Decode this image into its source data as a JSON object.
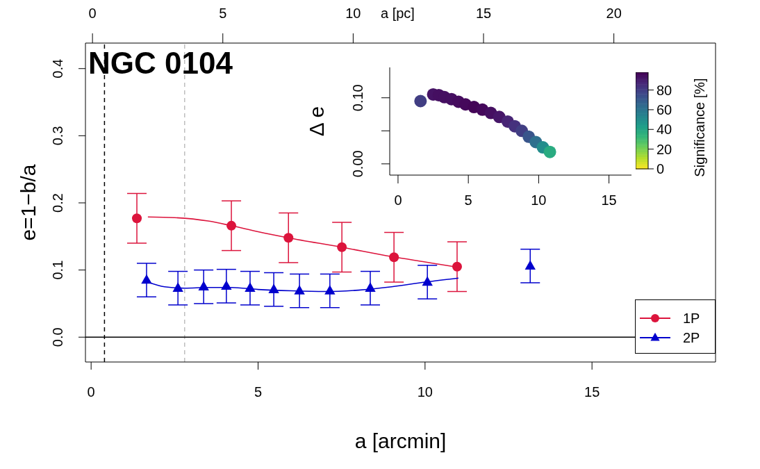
{
  "chart_data": [
    {
      "type": "scatter",
      "title": "NGC 0104",
      "xlabel": "a [arcmin]",
      "ylabel": "e=1−b/a",
      "x2label": "a [pc]",
      "xlim": [
        -0.17,
        18.7
      ],
      "xticks": [
        0,
        5,
        10,
        15
      ],
      "x2lim": [
        -0.27,
        23.9
      ],
      "x2ticks": [
        0,
        5,
        10,
        15,
        20
      ],
      "ylim": [
        -0.037,
        0.438
      ],
      "yticks": [
        {
          "value": 0,
          "label": "0.0"
        },
        {
          "value": 0.1,
          "label": "0.1"
        },
        {
          "value": 0.2,
          "label": "0.2"
        },
        {
          "value": 0.3,
          "label": "0.3"
        },
        {
          "value": 0.4,
          "label": "0.4"
        }
      ],
      "legend": "bottom right",
      "series": [
        {
          "name": "1P",
          "type": "scatter",
          "color": "#dc143c",
          "marker": "circle",
          "x": [
            1.37,
            4.2,
            5.91,
            7.51,
            9.07,
            10.96
          ],
          "values": [
            0.177,
            0.166,
            0.148,
            0.134,
            0.119,
            0.105
          ],
          "errors": [
            0.037,
            0.037,
            0.037,
            0.037,
            0.037,
            0.037
          ]
        },
        {
          "name": "2P",
          "type": "scatter",
          "color": "#0000cd",
          "marker": "triangle",
          "x": [
            1.66,
            2.6,
            3.37,
            4.05,
            4.76,
            5.47,
            6.24,
            7.15,
            8.36,
            10.07,
            13.15
          ],
          "values": [
            0.085,
            0.073,
            0.075,
            0.076,
            0.073,
            0.071,
            0.069,
            0.069,
            0.073,
            0.082,
            0.106
          ],
          "errors": [
            0.025,
            0.025,
            0.025,
            0.025,
            0.025,
            0.025,
            0.025,
            0.025,
            0.025,
            0.025,
            0.025
          ]
        },
        {
          "type": "line",
          "color": "#dc143c",
          "marker": "none",
          "x": [
            1.7,
            2.5,
            3.5,
            4.2,
            5,
            5.9,
            7.5,
            9,
            10,
            11
          ],
          "values": [
            0.179,
            0.178,
            0.173,
            0.166,
            0.157,
            0.148,
            0.134,
            0.12,
            0.112,
            0.104
          ]
        },
        {
          "type": "line",
          "color": "#0000cd",
          "marker": "none",
          "x": [
            1.7,
            2.2,
            2.8,
            3.5,
            4.2,
            5,
            6,
            7,
            8,
            9,
            10,
            11
          ],
          "values": [
            0.082,
            0.075,
            0.073,
            0.074,
            0.074,
            0.071,
            0.069,
            0.068,
            0.07,
            0.075,
            0.082,
            0.088
          ]
        }
      ],
      "ref_lines": [
        {
          "axis": "x",
          "value": 0.4,
          "color": "#000000",
          "line_style": "dashed"
        },
        {
          "axis": "x",
          "value": 2.8,
          "color": "#bebebe",
          "line_style": "dashed"
        },
        {
          "axis": "y",
          "value": 0,
          "color": "#000000",
          "line_style": "solid"
        }
      ]
    },
    {
      "type": "scatter",
      "ylabel": "Δ e",
      "clabel": "Significance [%]",
      "xlim": [
        -0.59,
        16.6
      ],
      "xticks": [
        0,
        5,
        10,
        15
      ],
      "ylim": [
        -0.017,
        0.146
      ],
      "yticks": [
        {
          "value": 0,
          "label": "0.00"
        },
        {
          "value": 0.05,
          "label": null
        },
        {
          "value": 0.1,
          "label": "0.10"
        }
      ],
      "clim": [
        0,
        98
      ],
      "cticks": [
        0,
        20,
        40,
        60,
        80
      ],
      "x": [
        1.6,
        2.5,
        2.9,
        3.3,
        3.8,
        4.3,
        4.8,
        5.4,
        6.0,
        6.6,
        7.2,
        7.8,
        8.3,
        8.8,
        9.3,
        9.8,
        10.3,
        10.8
      ],
      "values": [
        0.095,
        0.105,
        0.104,
        0.101,
        0.098,
        0.094,
        0.09,
        0.086,
        0.082,
        0.077,
        0.071,
        0.064,
        0.057,
        0.05,
        0.041,
        0.033,
        0.025,
        0.018
      ],
      "cvalues": [
        80,
        93,
        94,
        94,
        94,
        95,
        96,
        97,
        96,
        94,
        92,
        88,
        84,
        80,
        72,
        62,
        50,
        38
      ]
    }
  ]
}
